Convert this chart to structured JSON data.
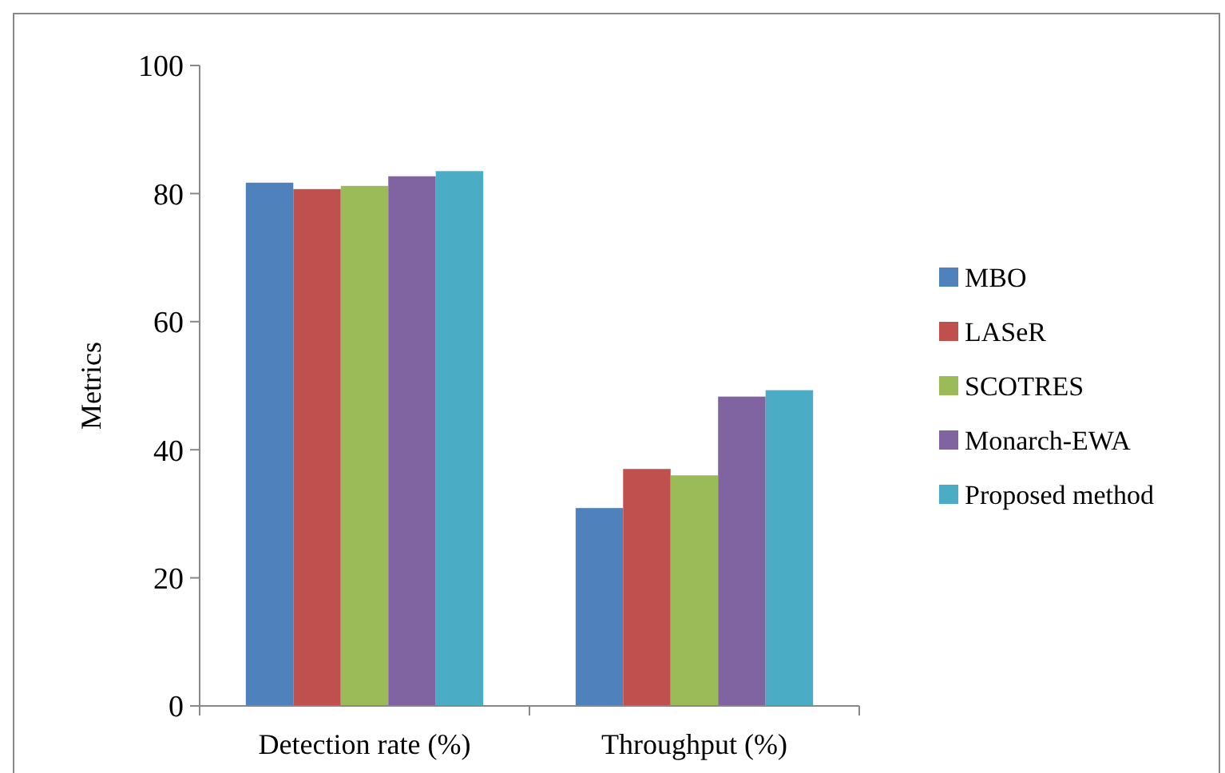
{
  "chart_data": {
    "type": "bar",
    "ylabel": "Metrics",
    "categories": [
      "Detection rate (%)",
      "Throughput (%)"
    ],
    "series": [
      {
        "name": "MBO",
        "color": "#4f81bd",
        "values": [
          81.7,
          30.9
        ]
      },
      {
        "name": "LASeR",
        "color": "#c0504d",
        "values": [
          80.7,
          37
        ]
      },
      {
        "name": "SCOTRES",
        "color": "#9bbb59",
        "values": [
          81.2,
          36
        ]
      },
      {
        "name": "Monarch-EWA",
        "color": "#8064a2",
        "values": [
          82.7,
          48.3
        ]
      },
      {
        "name": "Proposed method",
        "color": "#4bacc6",
        "values": [
          83.5,
          49.3
        ]
      }
    ],
    "ylim": [
      0,
      100
    ],
    "yticks": [
      0,
      20,
      40,
      60,
      80,
      100
    ],
    "grid": false,
    "legend": "right"
  }
}
